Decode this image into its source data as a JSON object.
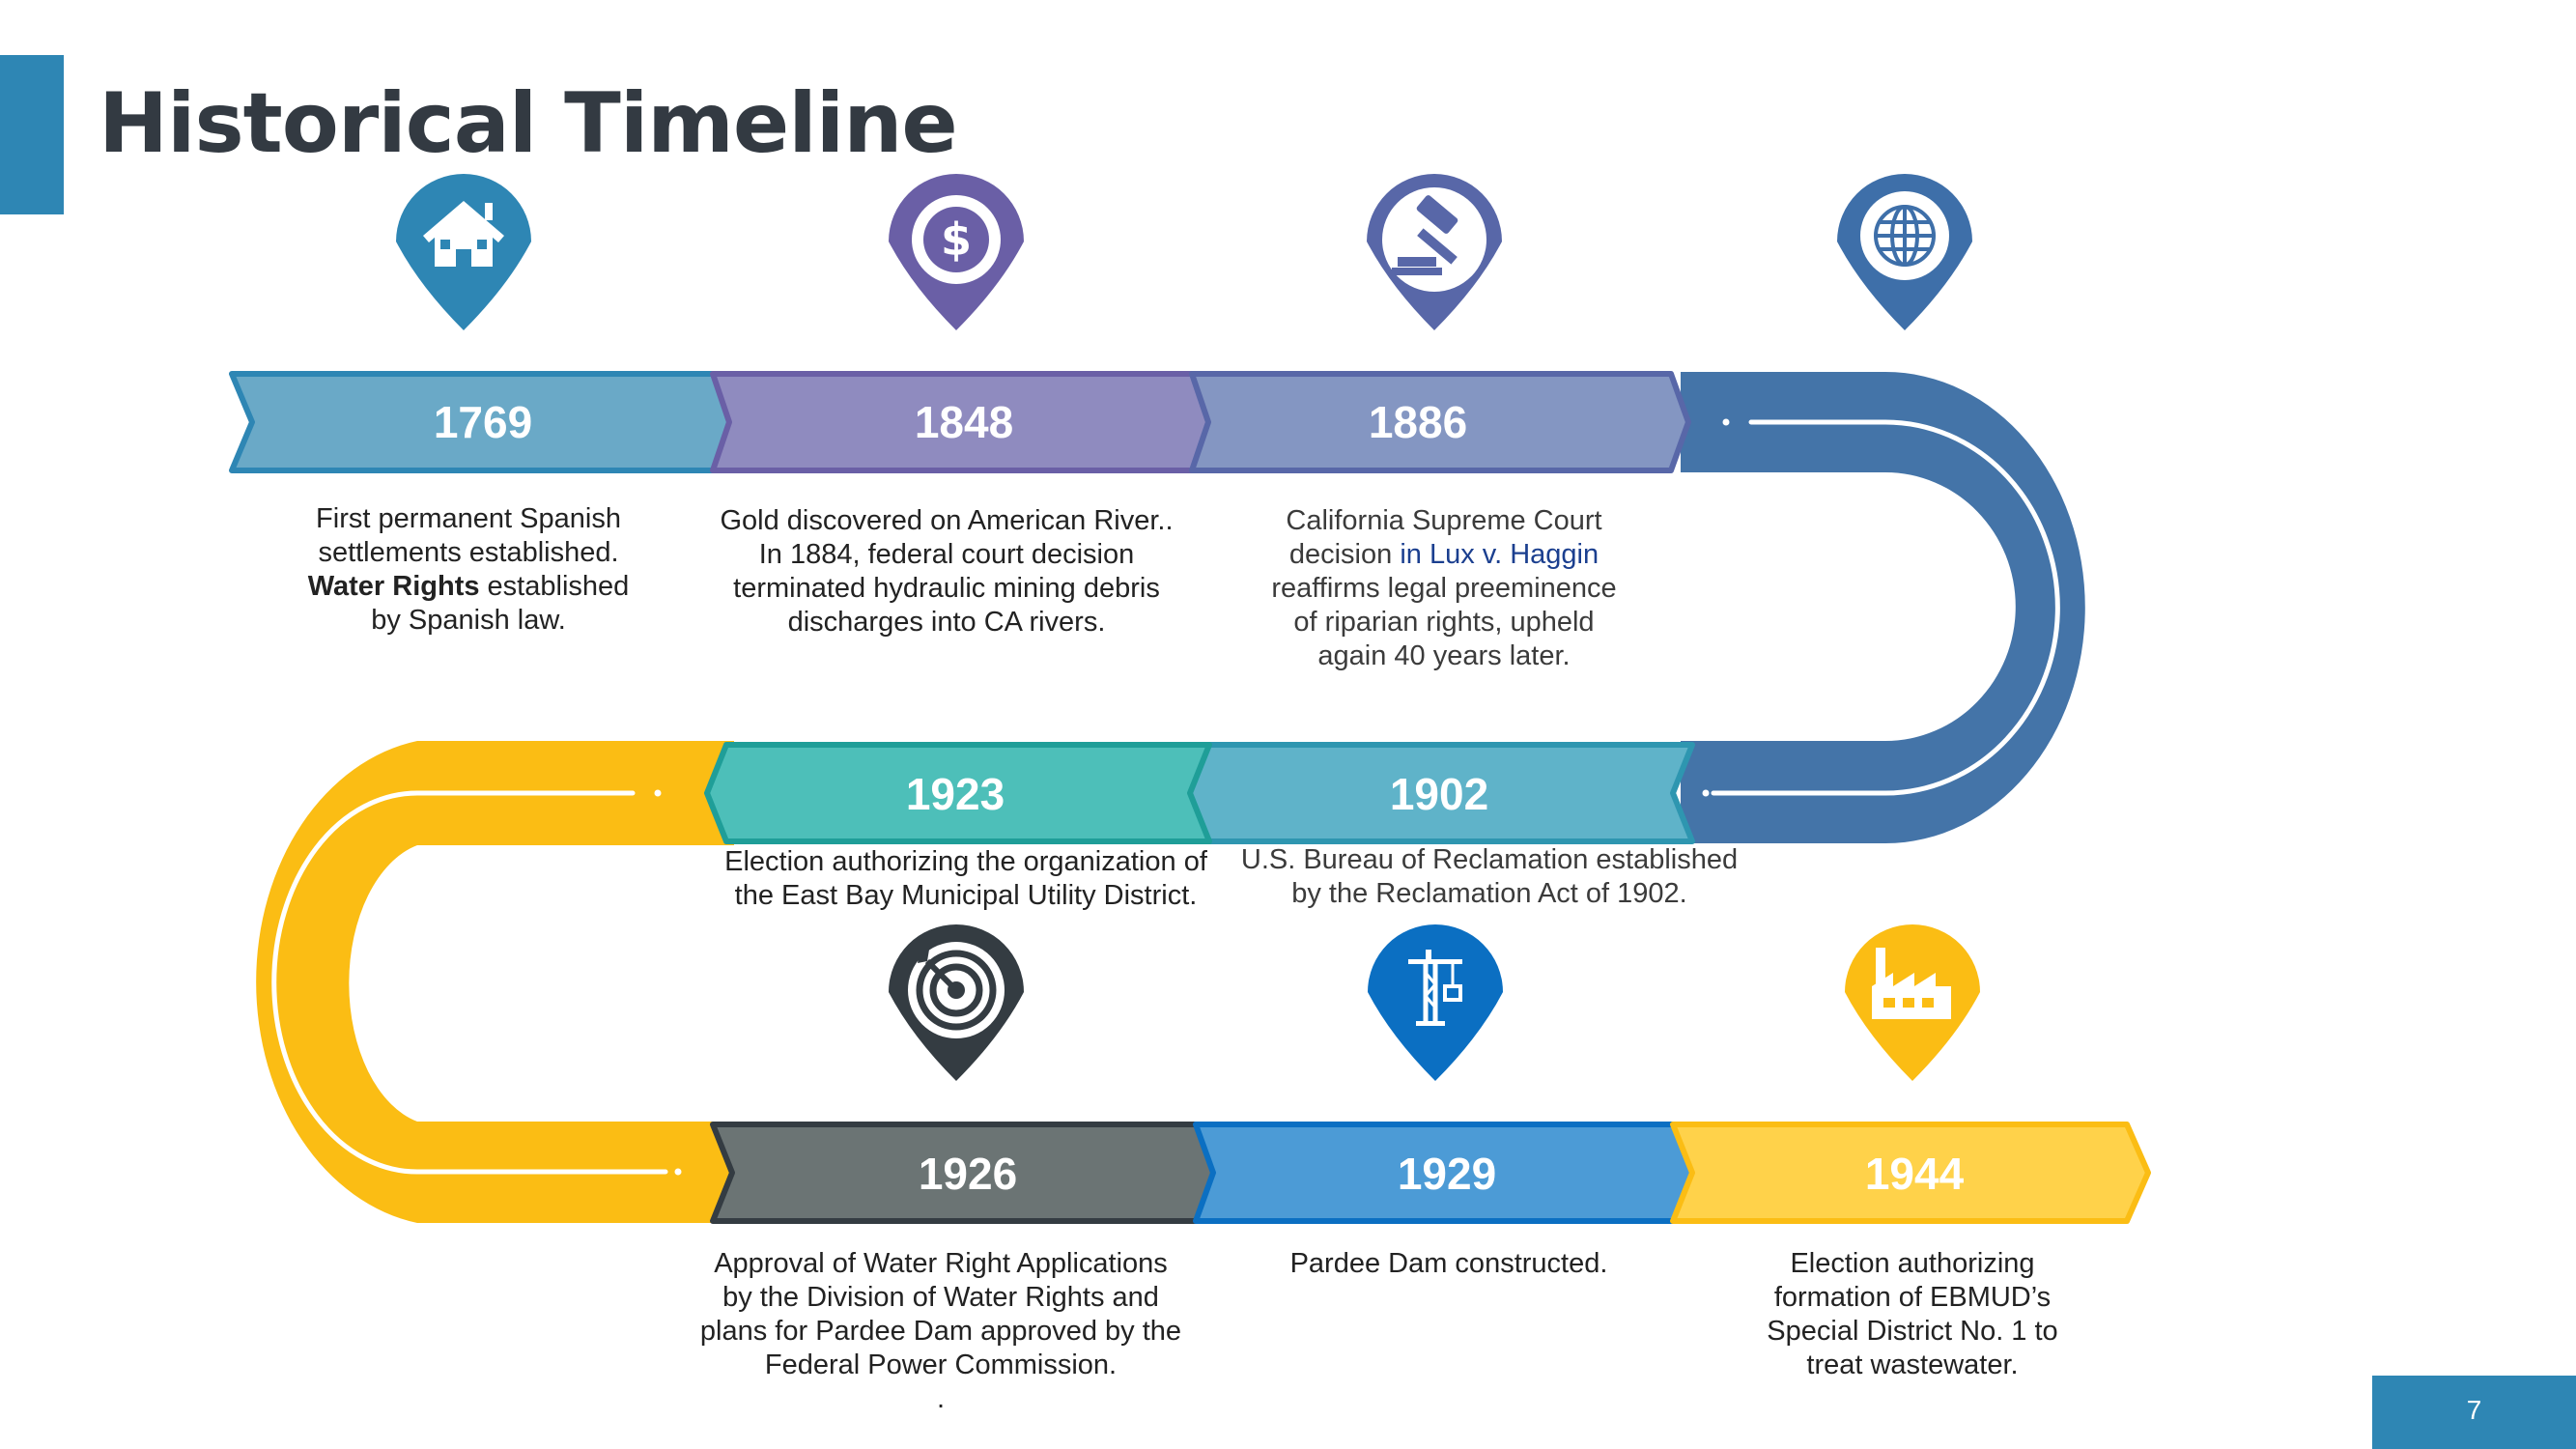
{
  "title": "Historical Timeline",
  "page_number": "7",
  "events": [
    {
      "year": "1769",
      "icon": "house-icon",
      "color": "#6aa9c7",
      "pin_color": "#2e86b4",
      "lines": [
        "First permanent Spanish",
        "settlements established."
      ],
      "bold_text": "Water Rights",
      "bold_suffix": " established",
      "last_line": "by Spanish law."
    },
    {
      "year": "1848",
      "icon": "dollar-icon",
      "color": "#8f8bbf",
      "pin_color": "#6a5fa6",
      "lines": [
        "Gold discovered on American River..",
        "In 1884, federal court decision",
        "terminated hydraulic mining debris",
        "discharges into CA rivers."
      ]
    },
    {
      "year": "1886",
      "icon": "gavel-icon",
      "color": "#8496c2",
      "pin_color": "#5867a8",
      "line1": "California Supreme Court",
      "line2_prefix": "decision ",
      "line2_link": "in Lux v. Haggin",
      "lines": [
        "reaffirms legal preeminence",
        "of riparian rights, upheld",
        "again 40 years later."
      ]
    },
    {
      "year": "1902",
      "icon": "globe-icon",
      "color": "#5fb3c9",
      "pin_color": "#3e6fa9",
      "lines": [
        "U.S. Bureau of Reclamation established",
        "by the Reclamation Act of 1902."
      ]
    },
    {
      "year": "1923",
      "icon": "target-icon",
      "color": "#4dbfb9",
      "pin_color": "#343c42",
      "lines": [
        "Election authorizing the organization of",
        "the East Bay Municipal Utility District."
      ]
    },
    {
      "year": "1926",
      "color": "#6b7474",
      "lines": [
        "Approval of Water Right Applications",
        "by the Division of Water Rights and",
        "plans for Pardee Dam approved by the",
        "Federal Power Commission.",
        "."
      ]
    },
    {
      "year": "1929",
      "icon": "crane-icon",
      "color": "#4c9bd6",
      "pin_color": "#0b6fc2",
      "lines": [
        "Pardee Dam constructed."
      ]
    },
    {
      "year": "1944",
      "icon": "factory-icon",
      "color": "#ffd24a",
      "pin_color": "#fbbd14",
      "lines": [
        "Election authorizing",
        "formation of EBMUD’s",
        "Special District No. 1 to",
        "treat wastewater."
      ]
    }
  ]
}
